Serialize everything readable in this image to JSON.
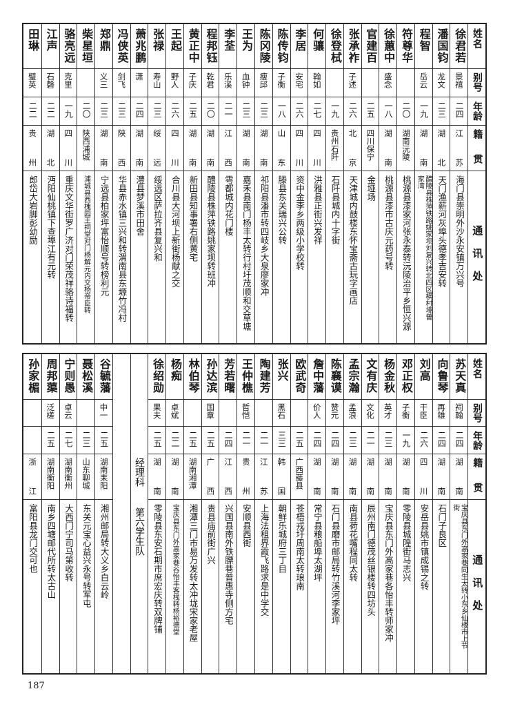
{
  "headers": {
    "name": "姓名",
    "alias": "别号",
    "age": "年龄",
    "native": "籍贯",
    "address": "通讯处"
  },
  "top_table": {
    "rows": [
      {
        "name": "徐君若",
        "alias": "景禧",
        "age": "二四",
        "native": "江苏",
        "address": "海门县崇明外沙永安镇万兴号"
      },
      {
        "name": "潘国钧",
        "alias": "龙文",
        "age": "二三",
        "native": "湖北",
        "address": "天门渔薪河灰埠头德孝吉安转"
      },
      {
        "name": "程智",
        "alias": "岳云",
        "age": "一九",
        "native": "湖南",
        "address": "醴陵县株萍铁路姚家坝刘复兴转北四区横村境曾家湾"
      },
      {
        "name": "符尊华",
        "alias": "",
        "age": "二〇",
        "native": "湖南沅陵",
        "address": "桃源县漆家河张永泰转沅陵治平乡恒兴源"
      },
      {
        "name": "徐蕙中",
        "alias": "盛念",
        "age": "一八",
        "native": "湖南",
        "address": "桃源县漆市古庆元药号转"
      },
      {
        "name": "官建百",
        "alias": "",
        "age": "二五",
        "native": "四川保宁",
        "address": "金垭场"
      },
      {
        "name": "张承祚",
        "alias": "子述",
        "age": "二六",
        "native": "北京",
        "address": "天津城内鼓楼东怀宝斋古玩字画店"
      },
      {
        "name": "徐登栻",
        "alias": "",
        "age": "一九",
        "native": "贵州石阡",
        "address": "石阡县城内十字街"
      },
      {
        "name": "何骧",
        "alias": "翰如",
        "age": "二七",
        "native": "四川",
        "address": "洪雅县正街兴发祥"
      },
      {
        "name": "李居",
        "alias": "安宅",
        "age": "二六",
        "native": "四川",
        "address": "资中金李乡两级小学校转"
      },
      {
        "name": "陈传钧",
        "alias": "子衡",
        "age": "一八",
        "native": "山东",
        "address": "滕县东关瑞兴公转"
      },
      {
        "name": "陈冈陵",
        "alias": "瘦邱",
        "age": "二三",
        "native": "湖南",
        "address": "祁阳县潘市转四岐乡大泉廖家冲"
      },
      {
        "name": "王为",
        "alias": "血钟",
        "age": "二三",
        "native": "湖南",
        "address": "嘉禾县南门杨丰太转行村圩茂顺和交草塘"
      },
      {
        "name": "李荃",
        "alias": "乐溪",
        "age": "二一",
        "native": "江西",
        "address": "雩都城内花门楼"
      },
      {
        "name": "程邦钰",
        "alias": "乾君",
        "age": "二〇",
        "native": "湖南",
        "address": "醴陵县株萍铁路姚家坝转班冲"
      },
      {
        "name": "黄正中",
        "alias": "子庆",
        "age": "二五",
        "native": "湖南",
        "address": "新田县知事署右侧黄宅"
      },
      {
        "name": "王起",
        "alias": "野人",
        "age": "二六",
        "native": "四川",
        "address": "合川县大河坝上新街杨献之交"
      },
      {
        "name": "张禄",
        "alias": "寿山",
        "age": "二三",
        "native": "绥远",
        "address": "绥远区萨拉齐县复兴和"
      },
      {
        "name": "萧兆鹏",
        "alias": "潇",
        "age": "二四",
        "native": "湖南",
        "address": "澧县梦溪市田舍"
      },
      {
        "name": "冯侠英",
        "alias": "剑飞",
        "age": "二三",
        "native": "陕西",
        "address": "华县赤水镇三兴和转渭南县东塬竹冯村"
      },
      {
        "name": "郑鼎",
        "alias": "义三",
        "age": "二三",
        "native": "湖南",
        "address": "宁远县柏家坪富怡顺号转榜利元"
      },
      {
        "name": "柴星垣",
        "alias": "",
        "age": "二〇",
        "native": "陕西浦城",
        "address": "浦城县西槐园王祠堂对门杨解元内交杨帝臣转"
      },
      {
        "name": "骆亮远",
        "alias": "克里",
        "age": "一九",
        "native": "四川",
        "address": "重庆文华街罗广济对门荣茂祥骆诗福转"
      },
      {
        "name": "江声",
        "alias": "石磬",
        "age": "二二",
        "native": "湖北",
        "address": "沔阳仙桃镇下查埠江有元转"
      },
      {
        "name": "田琳",
        "alias": "璧英",
        "age": "二二",
        "native": "贵州",
        "address": "郎岱大岩脚彭幼励"
      }
    ]
  },
  "bottom_table": {
    "rows_right": [
      {
        "name": "苏天真",
        "alias": "祠翰",
        "age": "二四",
        "native": "湖南",
        "address": "宝庆县东门外高家巷同生太转小东乡仙楼市上节街"
      },
      {
        "name": "向鲁琴",
        "alias": "再雄",
        "age": "二四",
        "native": "湖南",
        "address": "石门子良区"
      },
      {
        "name": "刘高",
        "alias": "干臣",
        "age": "二六",
        "native": "四川",
        "address": "安岳县姚市镇成锡之转"
      },
      {
        "name": "邓正权",
        "alias": "子衡",
        "age": "一九",
        "native": "湖南",
        "address": "零陵县城隍街马志兴"
      },
      {
        "name": "杨金秋",
        "alias": "英才",
        "age": "二三",
        "native": "湖南",
        "address": "宝庆县东门外高家巷各怡丰转师家冲"
      },
      {
        "name": "文有庆",
        "alias": "文化",
        "age": "二一",
        "native": "湖南",
        "address": "辰州南门德茂丝银楼转四坊头"
      },
      {
        "name": "孟宗瀚",
        "alias": "孟浪",
        "age": "二三",
        "native": "湖南",
        "address": "南县荷花嘴程同太转"
      },
      {
        "name": "陈襄谟",
        "alias": "赞元",
        "age": "二四",
        "native": "湖南",
        "address": "石门县磨市邮局转竹溪河李家坪"
      },
      {
        "name": "詹中藩",
        "alias": "价人",
        "age": "二四",
        "native": "湖南",
        "address": "常宁县粮船埠太湖坪"
      },
      {
        "name": "欧武奇",
        "alias": "",
        "age": "二五",
        "native": "广西藤县",
        "address": "苍梧戎圩周南太转琅南"
      },
      {
        "name": "张兴",
        "alias": "黑石",
        "age": "三三",
        "native": "韩国",
        "address": "朝鲜乐城府三丁目"
      },
      {
        "name": "陶建芳",
        "alias": "",
        "age": "二一",
        "native": "江苏",
        "address": "上海法租界霞飞路求是中学交"
      },
      {
        "name": "王仲樵",
        "alias": "哲恺",
        "age": "二一",
        "native": "贵州",
        "address": "安顺县西街"
      },
      {
        "name": "芳若曙",
        "alias": "",
        "age": "二四",
        "native": "江西",
        "address": "兴国县南外铁膘巷普惠寺侧方宅"
      },
      {
        "name": "孙达滨",
        "alias": "国章",
        "age": "二五",
        "native": "广西",
        "address": "贵县庙前街广兴"
      },
      {
        "name": "林伯琴",
        "alias": "",
        "age": "二五",
        "native": "湖南湘潭",
        "address": "湘潭三门市易万发转太冲垅宋家老屋"
      },
      {
        "name": "杨痴",
        "alias": "卓斌",
        "age": "二二",
        "native": "湖南",
        "address": "宝庆县东门外高家巷谷怡丰客栈转杨裕德堂"
      },
      {
        "name": "徐绍勋",
        "alias": "果夫",
        "age": "二五",
        "native": "湖南",
        "address": "零陵县东安石期市席宏庆转双牌铺"
      }
    ],
    "section_label": [
      "经理科",
      "第六学生队"
    ],
    "rows_left": [
      {
        "name": "谷毓藩",
        "alias": "中一",
        "age": "二五",
        "native": "湖南耒阳",
        "address": "湘州邮局转大义乡白云岭"
      },
      {
        "name": "聂松溪",
        "alias": "",
        "age": "二三",
        "native": "山东聊城",
        "address": "东关元宝心益兴永号转军屯"
      },
      {
        "name": "宁则愚",
        "alias": "卓云",
        "age": "二七",
        "native": "湖南衡州",
        "address": "大西门宁司马第收转"
      },
      {
        "name": "周邦蕖",
        "alias": "泛槎",
        "age": "二五",
        "native": "湖南衡阳",
        "address": "南乡四塘邮代所转太古山"
      },
      {
        "name": "孙家楣",
        "alias": "",
        "age": "",
        "native": "浙江",
        "address": "富阳县龙门交可也"
      }
    ]
  },
  "page_number": "187"
}
